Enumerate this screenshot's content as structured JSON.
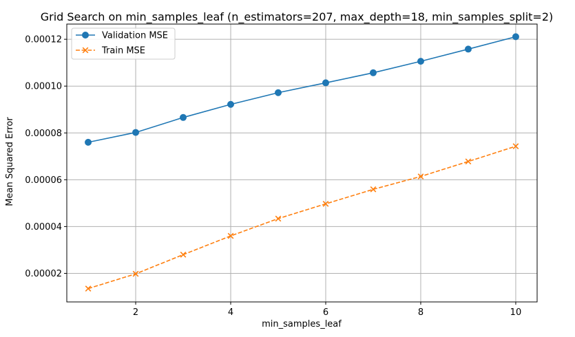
{
  "chart_data": {
    "type": "line",
    "title": "Grid Search on min_samples_leaf (n_estimators=207, max_depth=18, min_samples_split=2)",
    "xlabel": "min_samples_leaf",
    "ylabel": "Mean Squared Error",
    "x": [
      1,
      2,
      3,
      4,
      5,
      6,
      7,
      8,
      9,
      10
    ],
    "xlim": [
      0.55,
      10.45
    ],
    "ylim": [
      7.8e-06,
      0.0001265
    ],
    "xticks": [
      2,
      4,
      6,
      8,
      10
    ],
    "xtick_labels": [
      "2",
      "4",
      "6",
      "8",
      "10"
    ],
    "yticks": [
      2e-05,
      4e-05,
      6e-05,
      8e-05,
      0.0001,
      0.00012
    ],
    "ytick_labels": [
      "0.00002",
      "0.00004",
      "0.00006",
      "0.00008",
      "0.00010",
      "0.00012"
    ],
    "grid": true,
    "legend_position": "upper-left",
    "series": [
      {
        "name": "Validation MSE",
        "color": "#1f77b4",
        "marker": "circle",
        "line_style": "solid",
        "values": [
          7.6e-05,
          8.02e-05,
          8.66e-05,
          9.22e-05,
          9.72e-05,
          0.0001014,
          0.0001057,
          0.0001106,
          0.0001158,
          0.0001211
        ]
      },
      {
        "name": "Train MSE",
        "color": "#ff7f0e",
        "marker": "x",
        "line_style": "dashed",
        "values": [
          1.35e-05,
          1.98e-05,
          2.8e-05,
          3.6e-05,
          4.34e-05,
          4.97e-05,
          5.59e-05,
          6.14e-05,
          6.78e-05,
          7.43e-05
        ]
      }
    ]
  }
}
